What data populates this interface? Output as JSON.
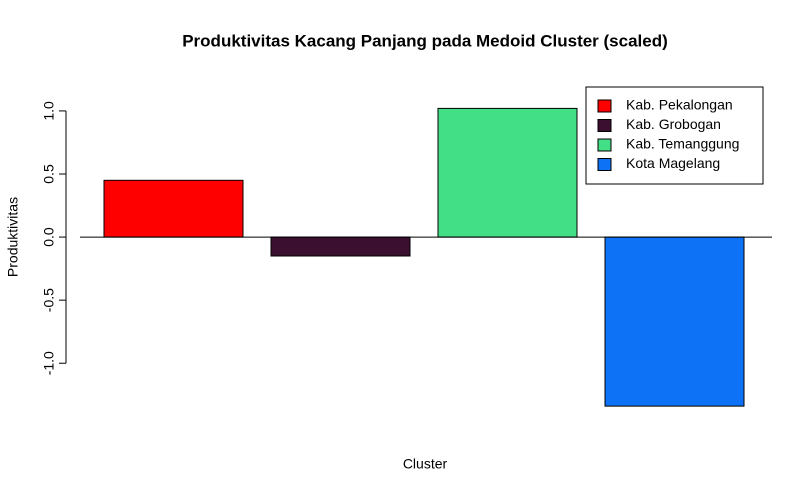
{
  "chart_data": {
    "type": "bar",
    "title": "Produktivitas Kacang Panjang pada Medoid Cluster (scaled)",
    "x_label": "Cluster",
    "y_label": "Produktivitas",
    "categories": [
      "Kab. Pekalongan",
      "Kab. Grobogan",
      "Kab. Temanggung",
      "Kota Magelang"
    ],
    "values": [
      0.45,
      -0.15,
      1.02,
      -1.34
    ],
    "colors": [
      "#ff0000",
      "#3b0f2f",
      "#43df86",
      "#0d72f5"
    ],
    "ylim": [
      -1.45,
      1.15
    ],
    "yticks": [
      {
        "value": -1,
        "label": "-1.0"
      },
      -0.5,
      {
        "value": 0,
        "label": "0.0"
      },
      0.5,
      {
        "value": 1,
        "label": "1.0"
      }
    ],
    "legend": "topright"
  }
}
